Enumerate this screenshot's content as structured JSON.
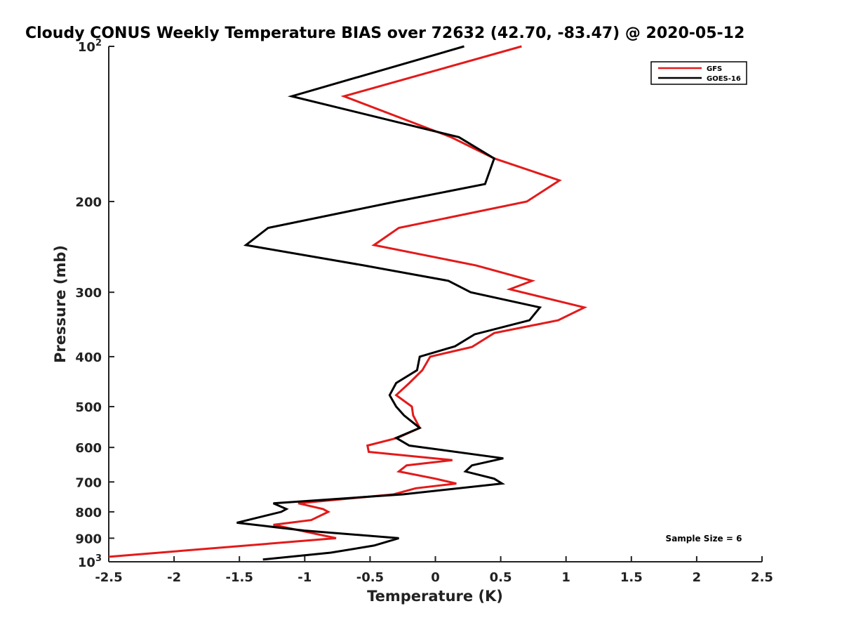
{
  "chart_data": {
    "type": "line",
    "title": "Cloudy CONUS Weekly Temperature BIAS over 72632 (42.70, -83.47) @ 2020-05-12",
    "xlabel": "Temperature (K)",
    "ylabel": "Pressure (mb)",
    "xlim": [
      -2.5,
      2.5
    ],
    "ylim": [
      1000,
      100
    ],
    "yscale": "log",
    "x_ticks": [
      {
        "value": -2.5,
        "label": "-2.5"
      },
      {
        "value": -2,
        "label": "-2"
      },
      {
        "value": -1.5,
        "label": "-1.5"
      },
      {
        "value": -1,
        "label": "-1"
      },
      {
        "value": -0.5,
        "label": "-0.5"
      },
      {
        "value": 0,
        "label": "0"
      },
      {
        "value": 0.5,
        "label": "0.5"
      },
      {
        "value": 1,
        "label": "1"
      },
      {
        "value": 1.5,
        "label": "1.5"
      },
      {
        "value": 2,
        "label": "2"
      },
      {
        "value": 2.5,
        "label": "2.5"
      }
    ],
    "y_ticks": [
      {
        "value": 100,
        "base": "10",
        "exp": "2"
      },
      {
        "value": 200,
        "label": "200"
      },
      {
        "value": 300,
        "label": "300"
      },
      {
        "value": 400,
        "label": "400"
      },
      {
        "value": 500,
        "label": "500"
      },
      {
        "value": 600,
        "label": "600"
      },
      {
        "value": 700,
        "label": "700"
      },
      {
        "value": 800,
        "label": "800"
      },
      {
        "value": 900,
        "label": "900"
      },
      {
        "value": 1000,
        "base": "10",
        "exp": "3"
      }
    ],
    "grid": false,
    "legend_position": "top-right",
    "series": [
      {
        "name": "GFS",
        "color": "#e31a1a",
        "points": [
          [
            0.66,
            100
          ],
          [
            -0.7,
            125
          ],
          [
            0.12,
            150
          ],
          [
            0.45,
            165
          ],
          [
            0.95,
            182
          ],
          [
            0.7,
            200
          ],
          [
            -0.28,
            225
          ],
          [
            -0.47,
            243
          ],
          [
            0.31,
            266
          ],
          [
            0.74,
            285
          ],
          [
            0.57,
            296
          ],
          [
            1.14,
            321
          ],
          [
            0.94,
            340
          ],
          [
            0.45,
            360
          ],
          [
            0.28,
            383
          ],
          [
            -0.04,
            400
          ],
          [
            -0.1,
            425
          ],
          [
            -0.2,
            450
          ],
          [
            -0.3,
            475
          ],
          [
            -0.18,
            500
          ],
          [
            -0.17,
            520
          ],
          [
            -0.12,
            550
          ],
          [
            -0.29,
            575
          ],
          [
            -0.52,
            595
          ],
          [
            -0.51,
            612
          ],
          [
            0.13,
            635
          ],
          [
            -0.22,
            650
          ],
          [
            -0.28,
            668
          ],
          [
            0.0,
            690
          ],
          [
            0.16,
            705
          ],
          [
            -0.15,
            720
          ],
          [
            -0.32,
            740
          ],
          [
            -1.05,
            770
          ],
          [
            -0.86,
            790
          ],
          [
            -0.82,
            800
          ],
          [
            -0.95,
            830
          ],
          [
            -1.24,
            848
          ],
          [
            -0.76,
            900
          ],
          [
            -2.5,
            978
          ]
        ]
      },
      {
        "name": "GOES-16",
        "color": "#000000",
        "points": [
          [
            0.22,
            100
          ],
          [
            -1.1,
            125
          ],
          [
            0.18,
            150
          ],
          [
            0.45,
            165
          ],
          [
            0.38,
            185
          ],
          [
            -0.3,
            200
          ],
          [
            -1.28,
            225
          ],
          [
            -1.45,
            243
          ],
          [
            -0.55,
            266
          ],
          [
            0.1,
            285
          ],
          [
            0.27,
            300
          ],
          [
            0.8,
            321
          ],
          [
            0.72,
            340
          ],
          [
            0.3,
            362
          ],
          [
            0.15,
            382
          ],
          [
            -0.12,
            400
          ],
          [
            -0.14,
            425
          ],
          [
            -0.3,
            450
          ],
          [
            -0.35,
            475
          ],
          [
            -0.3,
            500
          ],
          [
            -0.24,
            520
          ],
          [
            -0.12,
            550
          ],
          [
            -0.3,
            575
          ],
          [
            -0.2,
            595
          ],
          [
            0.52,
            630
          ],
          [
            0.28,
            650
          ],
          [
            0.23,
            668
          ],
          [
            0.45,
            690
          ],
          [
            0.51,
            705
          ],
          [
            -0.25,
            740
          ],
          [
            -1.24,
            770
          ],
          [
            -1.14,
            790
          ],
          [
            -1.18,
            800
          ],
          [
            -1.52,
            840
          ],
          [
            -1.0,
            870
          ],
          [
            -0.28,
            900
          ],
          [
            -0.47,
            930
          ],
          [
            -0.8,
            960
          ],
          [
            -1.32,
            990
          ]
        ]
      }
    ],
    "annotation": "Sample Size = 6"
  }
}
